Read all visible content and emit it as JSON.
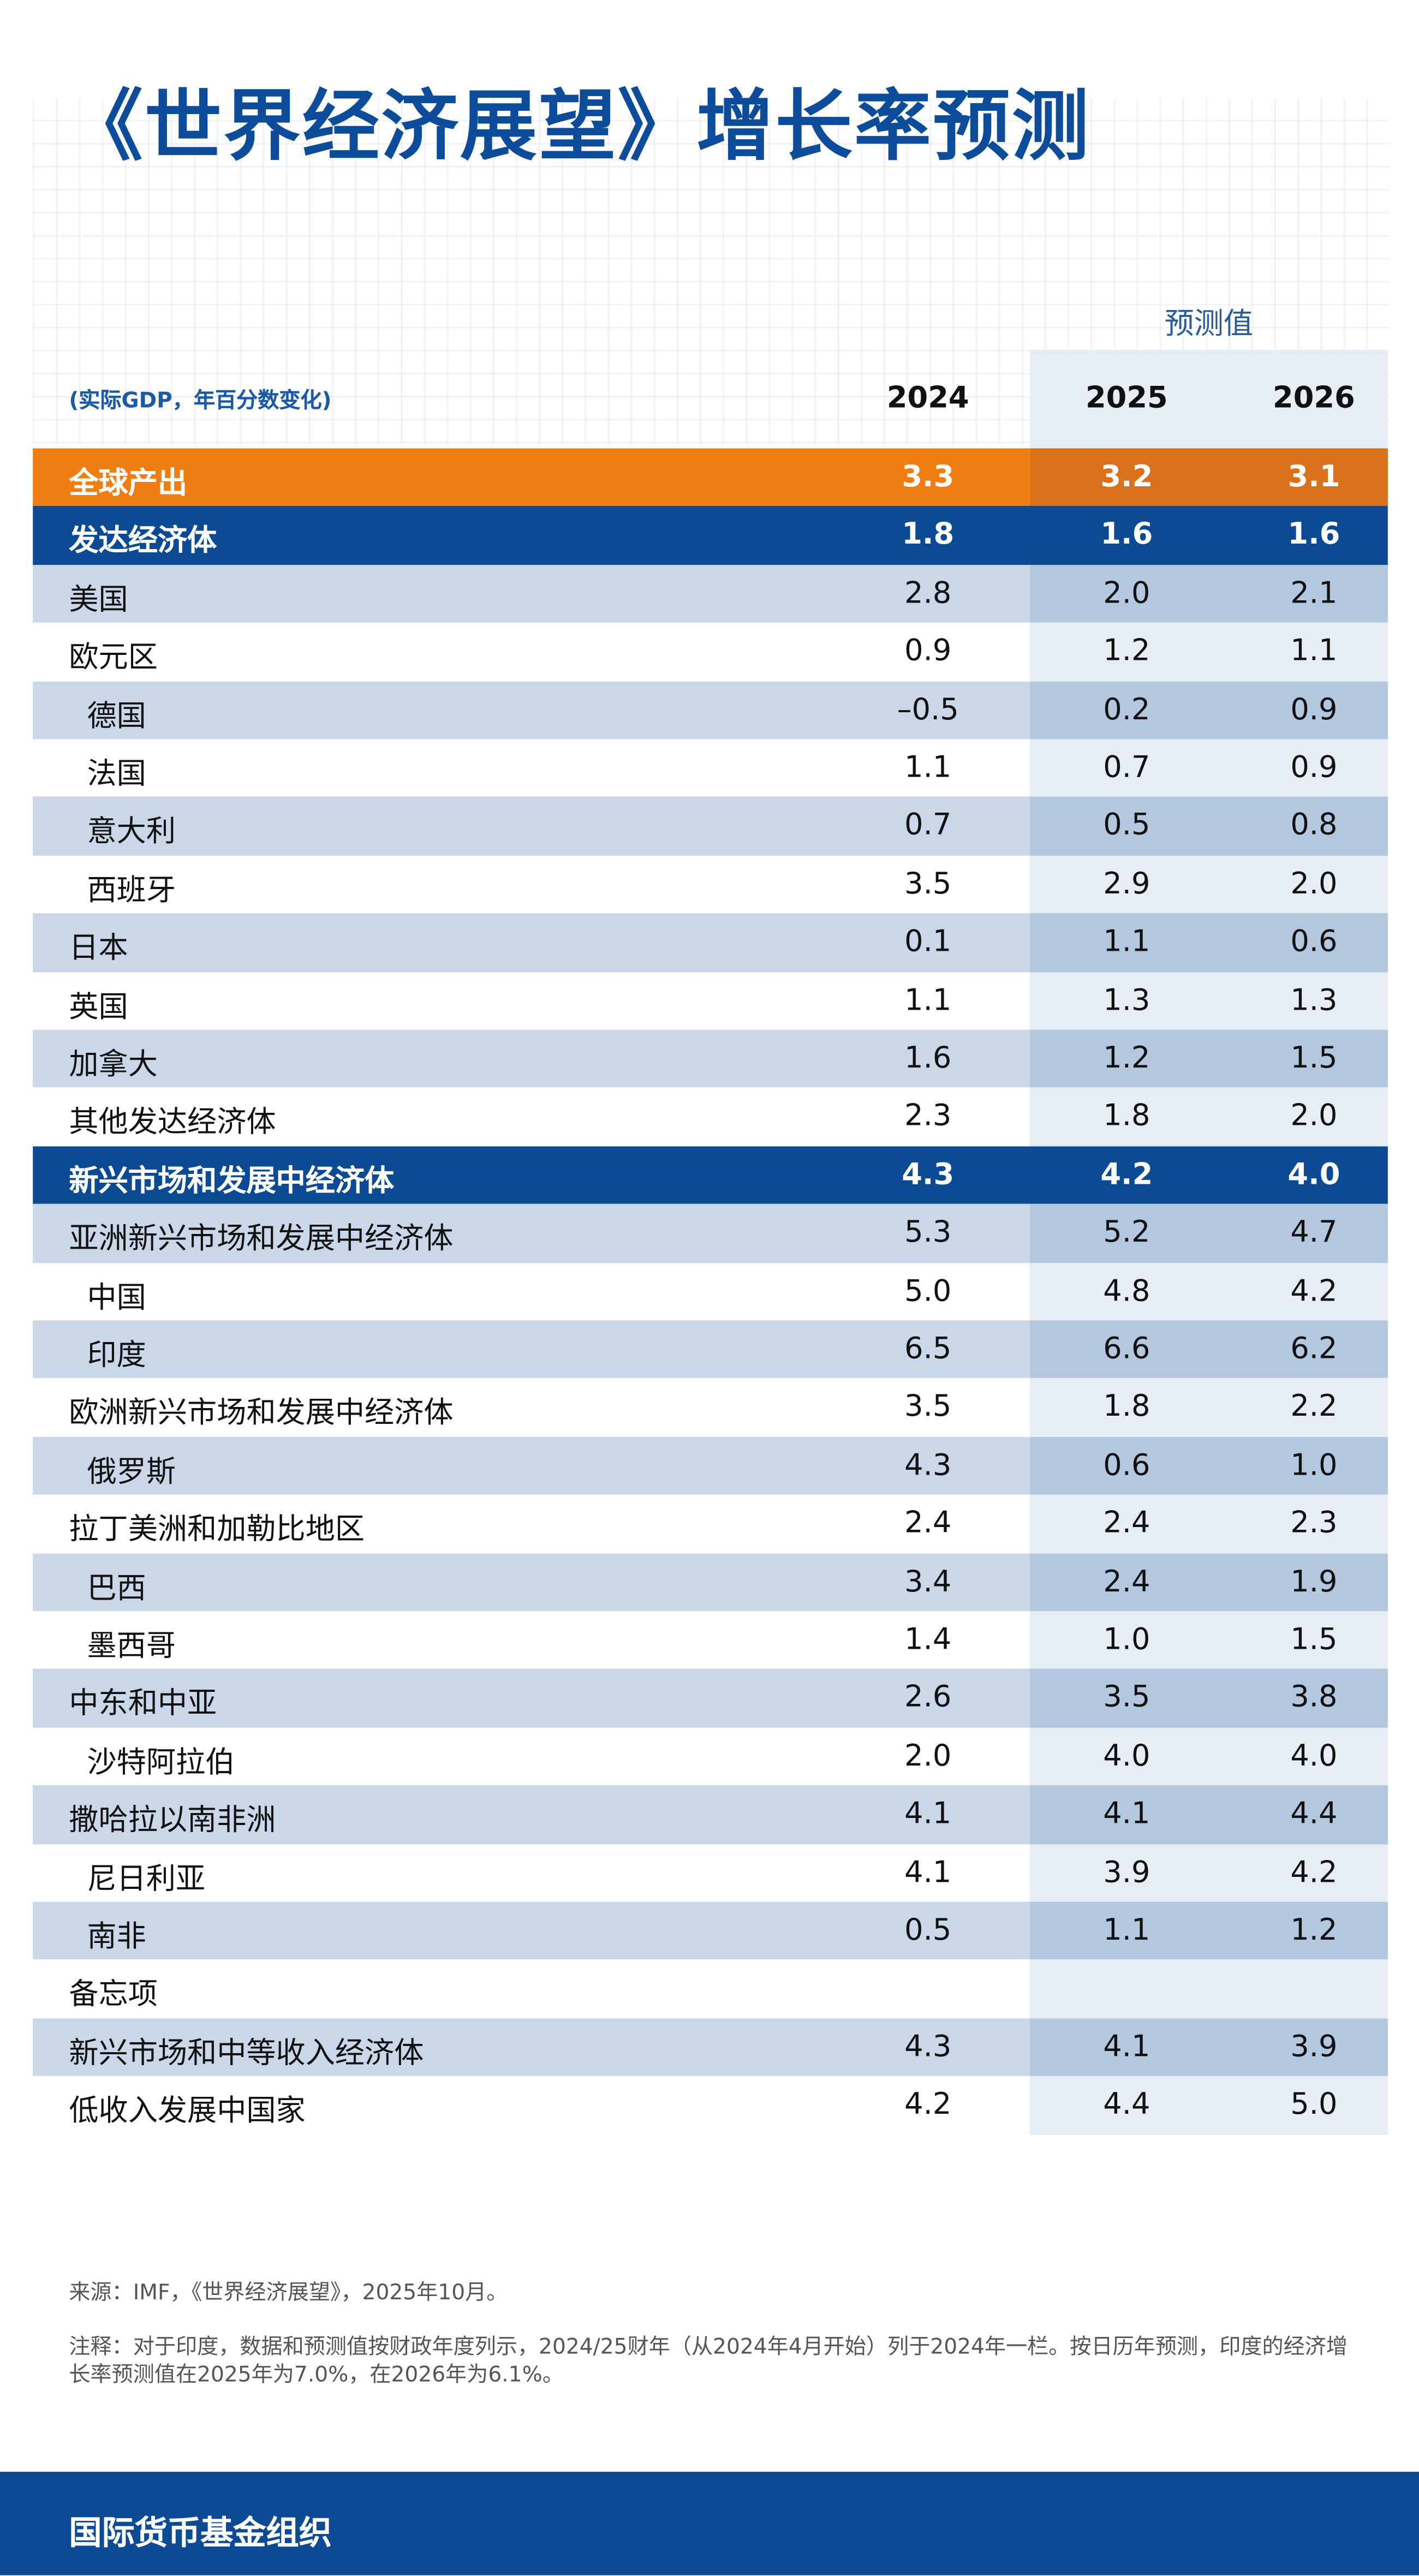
{
  "title": "《世界经济展望》增长率预测",
  "header": {
    "forecast_label": "预测值",
    "unit_note": "(实际GDP，年百分数变化)",
    "columns": [
      "2024",
      "2025",
      "2026"
    ]
  },
  "table": {
    "rows": [
      {
        "label": "全球产出",
        "values": [
          "3.3",
          "3.2",
          "3.1"
        ]
      },
      {
        "label": "发达经济体",
        "values": [
          "1.8",
          "1.6",
          "1.6"
        ]
      },
      {
        "label": "美国",
        "values": [
          "2.8",
          "2.0",
          "2.1"
        ]
      },
      {
        "label": "欧元区",
        "values": [
          "0.9",
          "1.2",
          "1.1"
        ]
      },
      {
        "label": "德国",
        "values": [
          "–0.5",
          "0.2",
          "0.9"
        ]
      },
      {
        "label": "法国",
        "values": [
          "1.1",
          "0.7",
          "0.9"
        ]
      },
      {
        "label": "意大利",
        "values": [
          "0.7",
          "0.5",
          "0.8"
        ]
      },
      {
        "label": "西班牙",
        "values": [
          "3.5",
          "2.9",
          "2.0"
        ]
      },
      {
        "label": "日本",
        "values": [
          "0.1",
          "1.1",
          "0.6"
        ]
      },
      {
        "label": "英国",
        "values": [
          "1.1",
          "1.3",
          "1.3"
        ]
      },
      {
        "label": "加拿大",
        "values": [
          "1.6",
          "1.2",
          "1.5"
        ]
      },
      {
        "label": "其他发达经济体",
        "values": [
          "2.3",
          "1.8",
          "2.0"
        ]
      },
      {
        "label": "新兴市场和发展中经济体",
        "values": [
          "4.3",
          "4.2",
          "4.0"
        ]
      },
      {
        "label": "亚洲新兴市场和发展中经济体",
        "values": [
          "5.3",
          "5.2",
          "4.7"
        ]
      },
      {
        "label": "中国",
        "values": [
          "5.0",
          "4.8",
          "4.2"
        ]
      },
      {
        "label": "印度",
        "values": [
          "6.5",
          "6.6",
          "6.2"
        ]
      },
      {
        "label": "欧洲新兴市场和发展中经济体",
        "values": [
          "3.5",
          "1.8",
          "2.2"
        ]
      },
      {
        "label": "俄罗斯",
        "values": [
          "4.3",
          "0.6",
          "1.0"
        ]
      },
      {
        "label": "拉丁美洲和加勒比地区",
        "values": [
          "2.4",
          "2.4",
          "2.3"
        ]
      },
      {
        "label": "巴西",
        "values": [
          "3.4",
          "2.4",
          "1.9"
        ]
      },
      {
        "label": "墨西哥",
        "values": [
          "1.4",
          "1.0",
          "1.5"
        ]
      },
      {
        "label": "中东和中亚",
        "values": [
          "2.6",
          "3.5",
          "3.8"
        ]
      },
      {
        "label": "沙特阿拉伯",
        "values": [
          "2.0",
          "4.0",
          "4.0"
        ]
      },
      {
        "label": "撒哈拉以南非洲",
        "values": [
          "4.1",
          "4.1",
          "4.4"
        ]
      },
      {
        "label": "尼日利亚",
        "values": [
          "4.1",
          "3.9",
          "4.2"
        ]
      },
      {
        "label": "南非",
        "values": [
          "0.5",
          "1.1",
          "1.2"
        ]
      },
      {
        "label": "备忘项",
        "values": []
      },
      {
        "label": "新兴市场和中等收入经济体",
        "values": [
          "4.3",
          "4.1",
          "3.9"
        ]
      },
      {
        "label": "低收入发展中国家",
        "values": [
          "4.2",
          "4.4",
          "5.0"
        ]
      }
    ]
  },
  "notes": {
    "source": "来源：IMF，《世界经济展望》，2025年10月。",
    "note": "注释：对于印度，数据和预测值按财政年度列示，2024/25财年（从2024年4月开始）列于2024年一栏。按日历年预测，印度的经济增长率预测值在2025年为7.0%，在2026年为6.1%。"
  },
  "footer": {
    "organization": "国际货币基金组织"
  }
}
